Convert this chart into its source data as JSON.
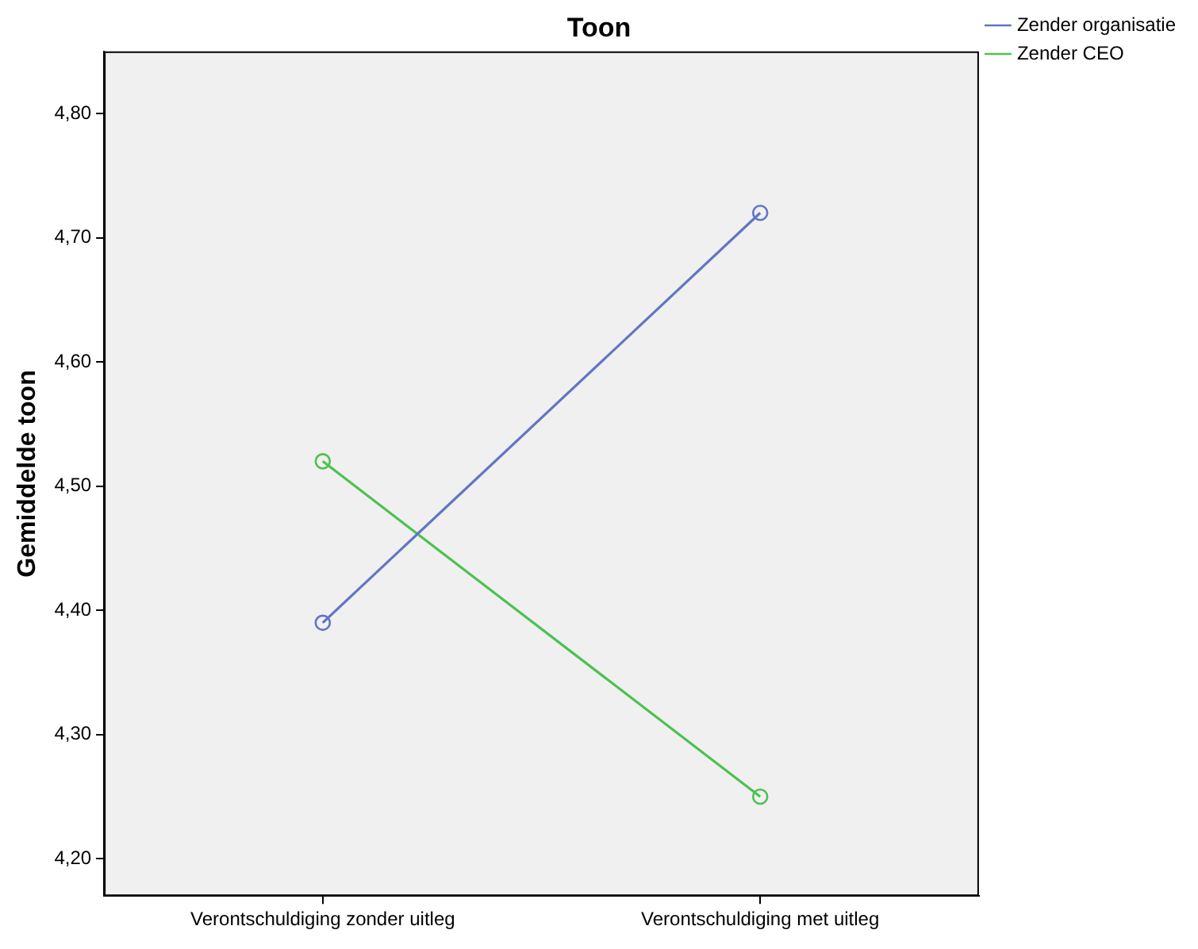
{
  "chart_data": {
    "type": "line",
    "title": "Toon",
    "ylabel": "Gemiddelde toon",
    "categories": [
      "Verontschuldiging zonder uitleg",
      "Verontschuldiging met uitleg"
    ],
    "series": [
      {
        "name": "Zender organisatie",
        "color": "#6275c4",
        "values": [
          4.39,
          4.72
        ]
      },
      {
        "name": "Zender CEO",
        "color": "#4cc250",
        "values": [
          4.52,
          4.25
        ]
      }
    ],
    "ylim": [
      4.17,
      4.85
    ],
    "yticks": [
      {
        "value": 4.2,
        "label": "4,20"
      },
      {
        "value": 4.3,
        "label": "4,30"
      },
      {
        "value": 4.4,
        "label": "4,40"
      },
      {
        "value": 4.5,
        "label": "4,50"
      },
      {
        "value": 4.6,
        "label": "4,60"
      },
      {
        "value": 4.7,
        "label": "4,70"
      },
      {
        "value": 4.8,
        "label": "4,80"
      }
    ],
    "grid": false,
    "legend": "top right",
    "marker": "circle",
    "line_style": "solid"
  }
}
